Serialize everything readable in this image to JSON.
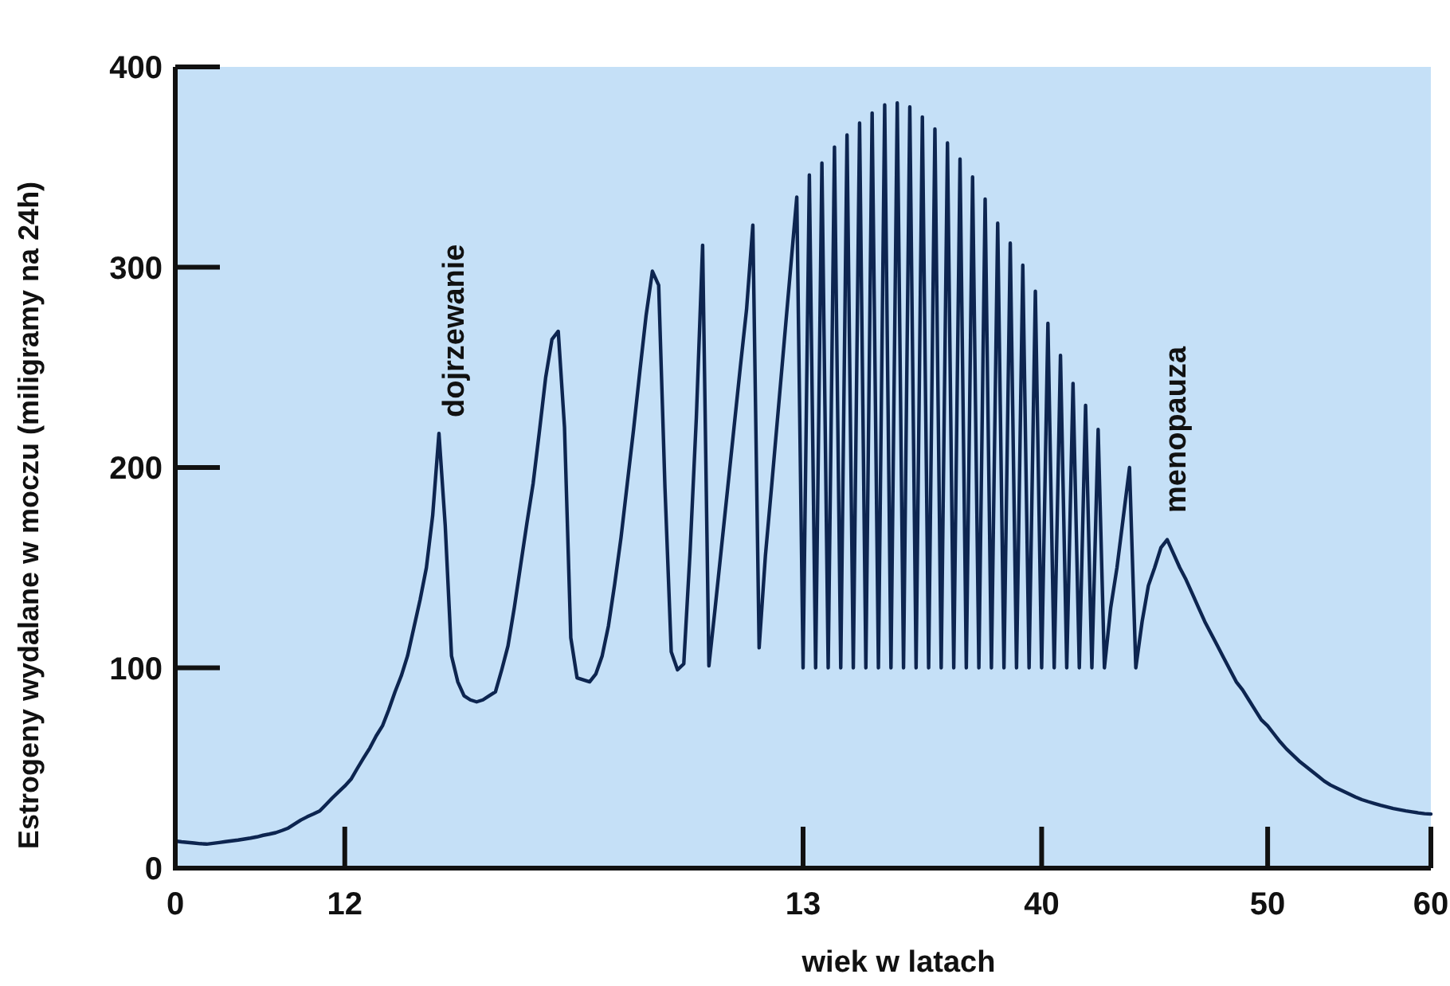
{
  "chart_data": {
    "type": "line",
    "xlabel": "wiek w latach",
    "ylabel": "Estrogeny wydalane w moczu (miligramy na 24h)",
    "categories": [
      "0",
      null,
      null,
      null,
      null,
      null,
      null,
      null,
      null,
      null,
      null,
      null,
      null,
      null,
      null,
      null,
      null,
      null,
      null,
      null,
      null,
      null,
      null,
      null,
      null,
      null,
      null,
      "12",
      null,
      null,
      null,
      null,
      null,
      null,
      null,
      null,
      null,
      null,
      null,
      null,
      null,
      null,
      null,
      null,
      null,
      null,
      null,
      null,
      null,
      null,
      null,
      null,
      null,
      null,
      null,
      null,
      null,
      null,
      null,
      null,
      null,
      null,
      null,
      null,
      null,
      null,
      null,
      null,
      null,
      null,
      null,
      null,
      null,
      null,
      null,
      null,
      null,
      null,
      null,
      null,
      null,
      null,
      null,
      null,
      null,
      null,
      null,
      null,
      null,
      null,
      null,
      null,
      null,
      null,
      null,
      null,
      null,
      null,
      null,
      null,
      "13",
      null,
      null,
      null,
      null,
      null,
      null,
      null,
      null,
      null,
      null,
      null,
      null,
      null,
      null,
      null,
      null,
      null,
      null,
      null,
      null,
      null,
      null,
      null,
      null,
      null,
      null,
      null,
      null,
      null,
      null,
      null,
      null,
      null,
      null,
      null,
      null,
      null,
      "40",
      null,
      null,
      null,
      null,
      null,
      null,
      null,
      null,
      null,
      null,
      null,
      null,
      null,
      null,
      null,
      null,
      null,
      null,
      null,
      null,
      null,
      null,
      null,
      null,
      null,
      null,
      null,
      null,
      null,
      null,
      null,
      null,
      null,
      null,
      null,
      "50",
      null,
      null,
      null,
      null,
      null,
      null,
      null,
      null,
      null,
      null,
      null,
      null,
      null,
      null,
      null,
      null,
      null,
      null,
      null,
      null,
      null,
      null,
      null,
      null,
      null,
      "60"
    ],
    "series": [
      {
        "color": "#0d2550",
        "values": [
          13.5,
          13.1,
          12.8,
          12.5,
          12.2,
          12,
          12.4,
          12.8,
          13.2,
          13.6,
          14,
          14.5,
          15,
          15.6,
          16.4,
          17,
          17.7,
          18.8,
          20,
          22,
          24,
          25.6,
          27,
          28.5,
          31.7,
          35,
          38,
          41,
          44.4,
          49.8,
          55,
          60,
          66,
          71,
          79,
          88,
          96,
          106,
          120,
          134,
          150,
          176,
          217,
          171,
          106,
          93,
          86,
          84,
          83,
          84,
          86,
          88,
          99,
          111,
          130,
          151,
          172,
          192,
          218,
          245,
          264,
          268,
          220,
          115,
          95,
          94,
          93,
          97,
          106,
          121,
          142,
          165,
          192,
          219,
          248,
          276,
          298,
          291,
          190,
          108,
          99,
          102,
          158,
          225,
          311,
          101,
          130,
          160,
          190,
          220,
          250,
          279,
          321,
          110,
          156,
          191,
          227,
          263,
          299,
          335,
          100,
          346,
          100,
          352,
          100,
          360,
          100,
          366,
          100,
          372,
          100,
          377,
          100,
          381,
          100,
          382,
          100,
          380,
          100,
          375,
          100,
          369,
          100,
          362,
          100,
          354,
          100,
          345,
          100,
          334,
          100,
          322,
          100,
          312,
          100,
          301,
          100,
          288,
          100,
          272,
          100,
          256,
          100,
          242,
          100,
          231,
          100,
          219,
          100,
          130,
          150,
          175,
          200,
          100,
          123,
          141,
          150,
          160,
          164,
          157,
          150,
          144,
          137,
          130,
          123,
          117,
          111,
          105,
          99,
          93,
          89,
          84,
          79,
          74,
          71,
          67,
          63,
          59.5,
          56.5,
          53.5,
          51,
          48.5,
          46,
          43.5,
          41.5,
          40,
          38.5,
          37,
          35.5,
          34.2,
          33.2,
          32.3,
          31.4,
          30.6,
          29.8,
          29.2,
          28.6,
          28.1,
          27.6,
          27.2,
          27
        ]
      }
    ],
    "ylim": [
      0,
      400
    ],
    "yticks": [
      0,
      100,
      200,
      300,
      400
    ],
    "annotations": [
      "dojrzewanie",
      "menopauza"
    ]
  }
}
